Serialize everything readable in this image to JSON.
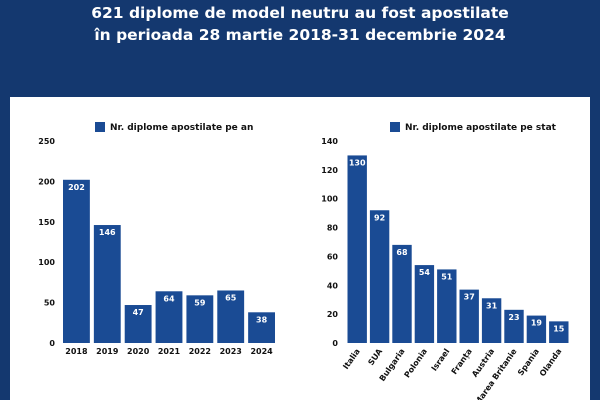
{
  "header": {
    "line1": "621 diplome de model neutru au fost apostilate",
    "line2": "în perioada 28 martie 2018-31 decembrie 2024"
  },
  "colors": {
    "background": "#14386f",
    "bar": "#1a4b94",
    "panel": "#ffffff"
  },
  "chart_data": [
    {
      "type": "bar",
      "legend": "Nr. diplome apostilate pe an",
      "categories": [
        "2018",
        "2019",
        "2020",
        "2021",
        "2022",
        "2023",
        "2024"
      ],
      "values": [
        202,
        146,
        47,
        64,
        59,
        65,
        38
      ],
      "ylim": [
        0,
        250
      ],
      "yticks": [
        0,
        50,
        100,
        150,
        200,
        250
      ]
    },
    {
      "type": "bar",
      "legend": "Nr. diplome apostilate pe stat",
      "categories": [
        "Italia",
        "SUA",
        "Bulgaria",
        "Polonia",
        "Israel",
        "Franța",
        "Austria",
        "Marea Britanie",
        "Spania",
        "Olanda"
      ],
      "values": [
        130,
        92,
        68,
        54,
        51,
        37,
        31,
        23,
        19,
        15
      ],
      "ylim": [
        0,
        140
      ],
      "yticks": [
        0,
        20,
        40,
        60,
        80,
        100,
        120,
        140
      ]
    }
  ]
}
